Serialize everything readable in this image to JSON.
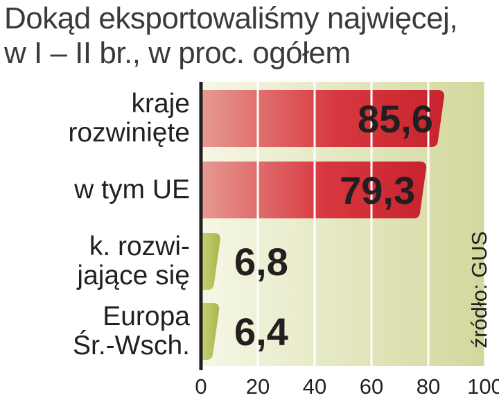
{
  "title_line1": "Dokąd eksportowaliśmy najwięcej,",
  "title_line2": "w I – II br., w proc. ogółem",
  "source": "źródło: GUS",
  "colors": {
    "red_bar": "#d7383f",
    "green_bar": "#a8b84a",
    "plot_bg": "#e7eac4",
    "axis": "#231f20"
  },
  "chart_data": {
    "type": "bar",
    "orientation": "horizontal",
    "title": "Dokąd eksportowaliśmy najwięcej, w I – II br., w proc. ogółem",
    "categories": [
      "kraje\nrozwinięte",
      "w tym UE",
      "k. rozwi-\njające się",
      "Europa\nŚr.-Wsch."
    ],
    "values": [
      85.6,
      79.3,
      6.8,
      6.4
    ],
    "value_labels": [
      "85,6",
      "79,3",
      "6,8",
      "6,4"
    ],
    "bar_colors": [
      "red",
      "red",
      "green",
      "green"
    ],
    "xlim": [
      0,
      100
    ],
    "xticks": [
      0,
      20,
      40,
      60,
      80,
      100
    ],
    "grid": true,
    "legend": "none"
  }
}
